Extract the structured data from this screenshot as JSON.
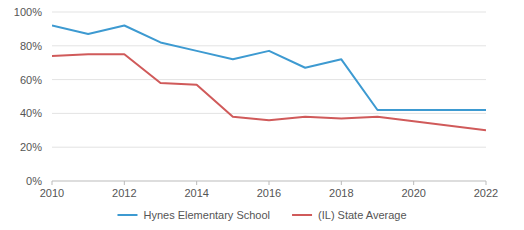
{
  "chart_data": {
    "type": "line",
    "x": [
      2010,
      2011,
      2012,
      2013,
      2014,
      2015,
      2016,
      2017,
      2018,
      2019,
      2022
    ],
    "series": [
      {
        "name": "Hynes Elementary School",
        "color": "#3d9ad1",
        "values": [
          92,
          87,
          92,
          82,
          77,
          72,
          77,
          67,
          72,
          42,
          42
        ]
      },
      {
        "name": "(IL) State Average",
        "color": "#d05a5a",
        "values": [
          74,
          75,
          75,
          58,
          57,
          38,
          36,
          38,
          37,
          38,
          30
        ]
      }
    ],
    "xlim": [
      2010,
      2022
    ],
    "xticks": [
      2010,
      2012,
      2014,
      2016,
      2018,
      2020,
      2022
    ],
    "ylim": [
      0,
      100
    ],
    "yticks": [
      {
        "value": 0,
        "label": "0%"
      },
      {
        "value": 20,
        "label": "20%"
      },
      {
        "value": 40,
        "label": "40%"
      },
      {
        "value": 60,
        "label": "60%"
      },
      {
        "value": 80,
        "label": "80%"
      },
      {
        "value": 100,
        "label": "100%"
      }
    ],
    "grid": true,
    "legend": "bottom"
  }
}
